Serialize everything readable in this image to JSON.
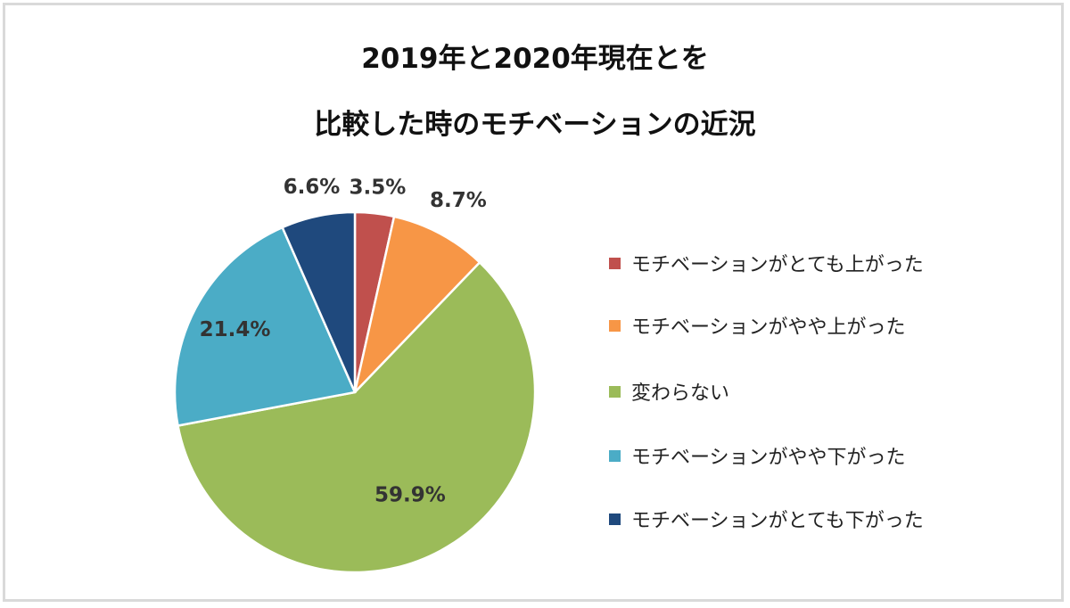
{
  "chart_data": {
    "type": "pie",
    "title_lines": [
      "2019年と2020年現在とを",
      "比較した時のモチベーションの近況"
    ],
    "start": "top",
    "direction": "clockwise",
    "legend_position": "right",
    "slices": [
      {
        "label": "モチベーションがとても上がった",
        "value": 3.5,
        "display": "3.5%",
        "color": "#C0504D"
      },
      {
        "label": "モチベーションがやや上がった",
        "value": 8.7,
        "display": "8.7%",
        "color": "#F79646"
      },
      {
        "label": "変わらない",
        "value": 59.9,
        "display": "59.9%",
        "color": "#9BBB59"
      },
      {
        "label": "モチベーションがやや下がった",
        "value": 21.4,
        "display": "21.4%",
        "color": "#4BACC6"
      },
      {
        "label": "モチベーションがとても下がった",
        "value": 6.6,
        "display": "6.6%",
        "color": "#1F497D"
      }
    ]
  }
}
